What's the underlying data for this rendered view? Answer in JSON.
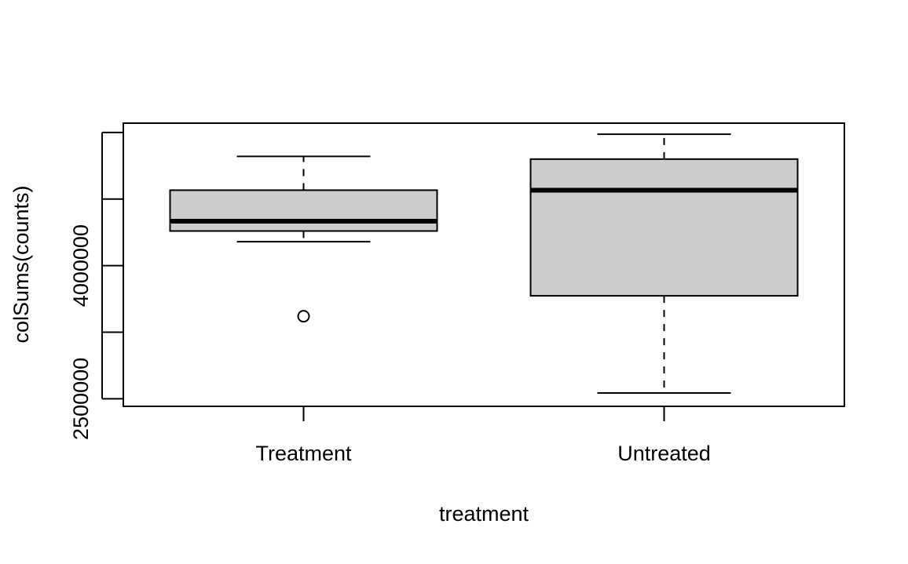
{
  "chart_data": {
    "type": "boxplot",
    "title": "",
    "xlabel": "treatment",
    "ylabel": "colSums(counts)",
    "categories": [
      "Treatment",
      "Untreated"
    ],
    "ylim": [
      2415000,
      5605000
    ],
    "y_ticks": [
      2500000,
      3250000,
      4000000,
      4750000,
      5500000
    ],
    "y_tick_labels": [
      "2500000",
      "",
      "4000000",
      "",
      ""
    ],
    "grid": false,
    "legend": "none",
    "series": [
      {
        "whisker_low": 4270000,
        "q1": 4390000,
        "median": 4500000,
        "q3": 4850000,
        "whisker_high": 5230000,
        "outliers": [
          3430000
        ]
      },
      {
        "whisker_low": 2565000,
        "q1": 3660000,
        "median": 4850000,
        "q3": 5200000,
        "whisker_high": 5480000,
        "outliers": []
      }
    ],
    "colors": {
      "box_fill": "#cccccc",
      "stroke": "#000000"
    }
  }
}
